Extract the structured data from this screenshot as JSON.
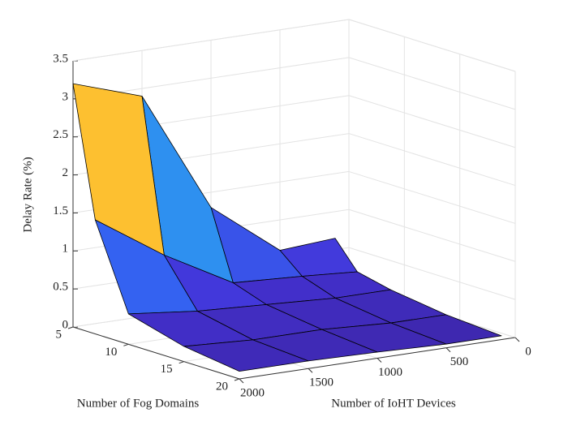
{
  "chart_data": {
    "type": "surface",
    "xlabel": "Number of Fog Domains",
    "ylabel": "Number of IoHT Devices",
    "zlabel": "Delay Rate (%)",
    "x": [
      5,
      7,
      10,
      15,
      20
    ],
    "y": [
      2000,
      1500,
      1000,
      500,
      100
    ],
    "z": [
      [
        3.2,
        2.9,
        1.3,
        0.6,
        0.65
      ],
      [
        1.5,
        0.9,
        0.4,
        0.35,
        0.3
      ],
      [
        0.4,
        0.3,
        0.25,
        0.2,
        0.2
      ],
      [
        0.2,
        0.15,
        0.15,
        0.1,
        0.1
      ],
      [
        0.1,
        0.1,
        0.08,
        0.05,
        0.05
      ]
    ],
    "xlim": [
      5,
      20
    ],
    "xticks": [
      5,
      10,
      15,
      20
    ],
    "ylim": [
      0,
      2000
    ],
    "yticks": [
      0,
      500,
      1000,
      1500,
      2000
    ],
    "zlim": [
      0,
      3.5
    ],
    "zticks": [
      0,
      0.5,
      1,
      1.5,
      2,
      2.5,
      3,
      3.5
    ],
    "grid": true,
    "edge_color": "#000000",
    "colormap": [
      "#3d26a8",
      "#4433d8",
      "#306cf6",
      "#2e8ff0",
      "#2f95ee",
      "#fdc030"
    ]
  }
}
